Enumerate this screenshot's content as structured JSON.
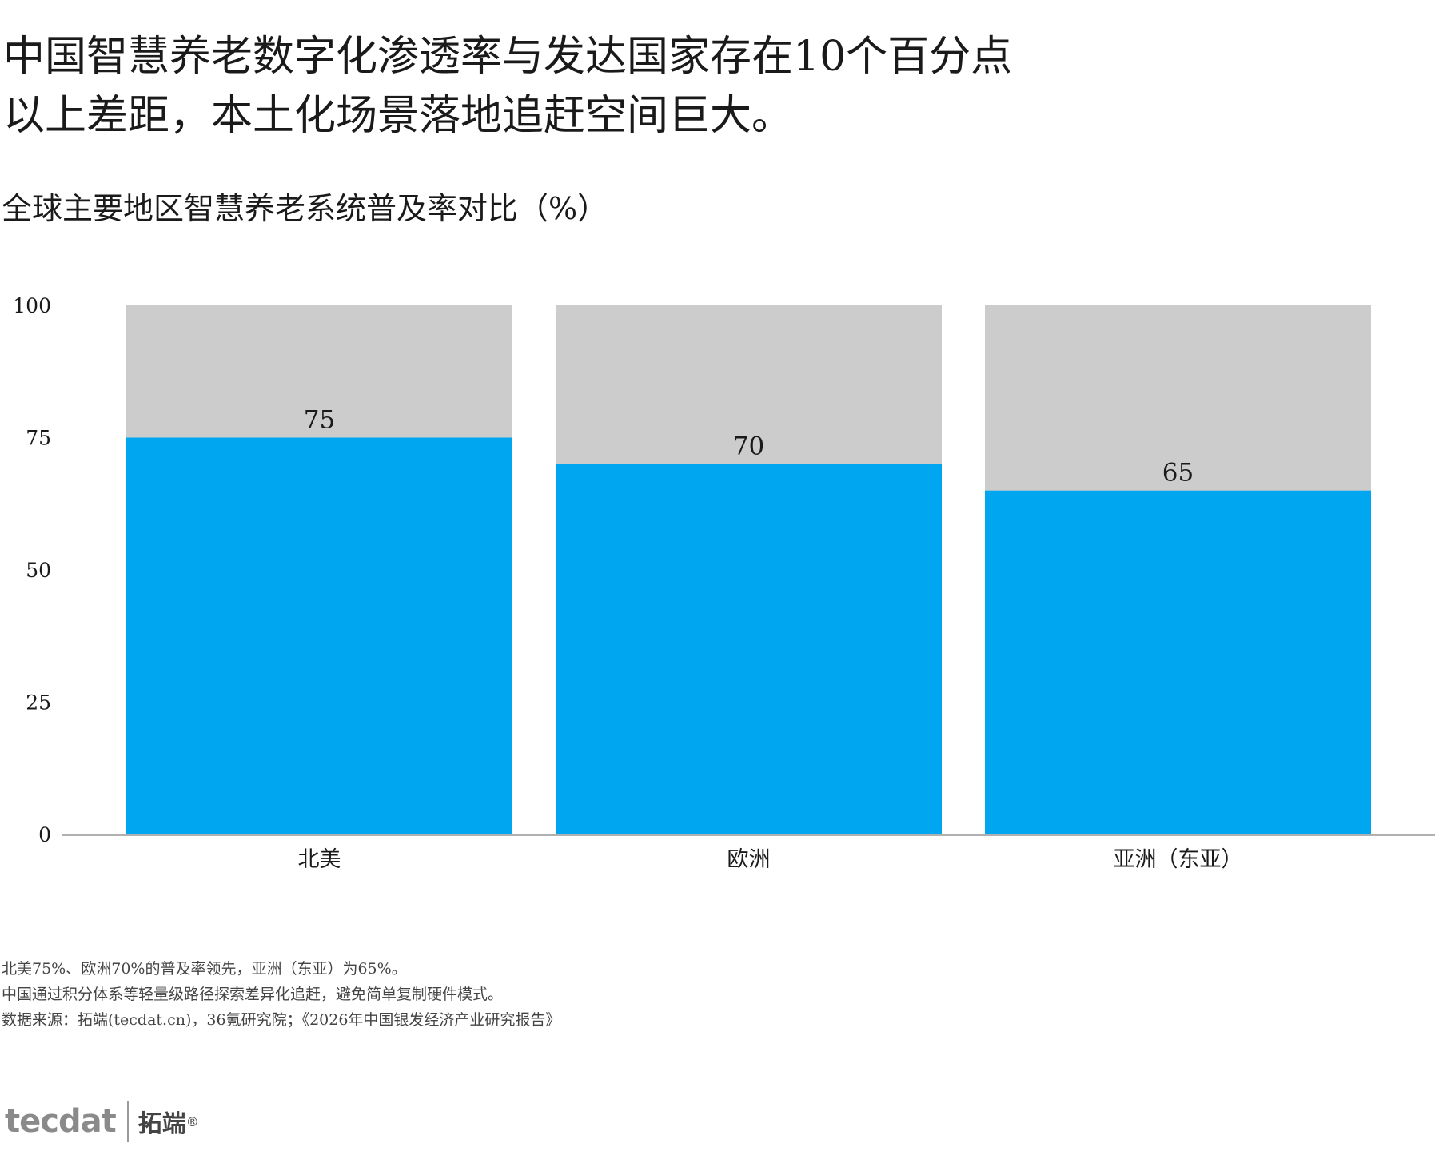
{
  "headline": {
    "line1": "中国智慧养老数字化渗透率与发达国家存在10个百分点",
    "line2": "以上差距，本土化场景落地追赶空间巨大。"
  },
  "subtitle": "全球主要地区智慧养老系统普及率对比（%）",
  "chart_data": {
    "type": "bar",
    "categories": [
      "北美",
      "欧洲",
      "亚洲（东亚）"
    ],
    "values": [
      75,
      70,
      65
    ],
    "data_labels": [
      "75",
      "70",
      "65"
    ],
    "background_total": 100,
    "ylim": [
      0,
      100
    ],
    "yticks": [
      "0",
      "25",
      "50",
      "75",
      "100"
    ],
    "ytick_values": [
      0,
      25,
      50,
      75,
      100
    ],
    "title": "",
    "xlabel": "",
    "ylabel": "",
    "grid": false,
    "colors": {
      "bar": "#00a6ef",
      "background": "#cccccc",
      "axis": "#b0b0b0"
    }
  },
  "notes": {
    "line1": "北美75%、欧洲70%的普及率领先，亚洲（东亚）为65%。",
    "line2": "中国通过积分体系等轻量级路径探索差异化追赶，避免简单复制硬件模式。",
    "line3": "数据来源：拓端(tecdat.cn)，36氪研究院；《2026年中国银发经济产业研究报告》"
  },
  "logo": {
    "mark": "tecdat",
    "name": "拓端",
    "reg": "®"
  }
}
